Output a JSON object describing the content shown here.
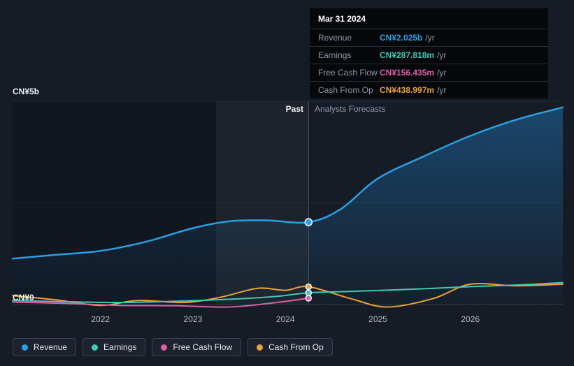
{
  "page": {
    "background": "#151c26"
  },
  "tooltip": {
    "title": "Mar 31 2024",
    "rows": [
      {
        "label": "Revenue",
        "value": "CN¥2.025b",
        "suffix": "/yr",
        "color": "#2b9fe3"
      },
      {
        "label": "Earnings",
        "value": "CN¥287.818m",
        "suffix": "/yr",
        "color": "#41c9b4"
      },
      {
        "label": "Free Cash Flow",
        "value": "CN¥156.435m",
        "suffix": "/yr",
        "color": "#dd5fa4"
      },
      {
        "label": "Cash From Op",
        "value": "CN¥438.997m",
        "suffix": "/yr",
        "color": "#e9a23b"
      }
    ]
  },
  "chart_data": {
    "type": "line",
    "title": "Past and forecast financials (CN¥ billions per year)",
    "y_axis": {
      "top_label": "CN¥5b",
      "bottom_label": "CN¥0",
      "ylim": [
        0,
        5
      ],
      "gridlines": [
        0,
        2.5,
        5
      ]
    },
    "x_axis": {
      "ticks": [
        2022,
        2023,
        2024,
        2025,
        2026
      ],
      "xlim": [
        2021.05,
        2027
      ]
    },
    "divider": {
      "x": 2024.25,
      "date": "Mar 31 2024",
      "past_label": "Past",
      "forecast_label": "Analysts Forecasts"
    },
    "series": [
      {
        "name": "Cash From Op",
        "color": "#e9a23b",
        "area": false,
        "marker_value": 0.439,
        "points": [
          [
            2021.05,
            0.22
          ],
          [
            2021.5,
            0.12
          ],
          [
            2022,
            -0.02
          ],
          [
            2022.4,
            0.1
          ],
          [
            2022.9,
            0.05
          ],
          [
            2023.3,
            0.18
          ],
          [
            2023.7,
            0.4
          ],
          [
            2024,
            0.35
          ],
          [
            2024.25,
            0.439
          ],
          [
            2024.7,
            0.15
          ],
          [
            2025.1,
            -0.06
          ],
          [
            2025.6,
            0.15
          ],
          [
            2026,
            0.5
          ],
          [
            2026.5,
            0.46
          ],
          [
            2027,
            0.5
          ]
        ]
      },
      {
        "name": "Free Cash Flow",
        "color": "#dd5fa4",
        "area": false,
        "marker_value": 0.156,
        "points": [
          [
            2021.05,
            0.06
          ],
          [
            2021.6,
            0.03
          ],
          [
            2022.2,
            -0.02
          ],
          [
            2022.8,
            -0.03
          ],
          [
            2023.4,
            -0.06
          ],
          [
            2023.9,
            0.05
          ],
          [
            2024.25,
            0.156
          ]
        ]
      },
      {
        "name": "Earnings",
        "color": "#41c9b4",
        "area": false,
        "marker_value": 0.288,
        "points": [
          [
            2021.05,
            0.1
          ],
          [
            2021.6,
            0.07
          ],
          [
            2022.2,
            0.05
          ],
          [
            2022.8,
            0.08
          ],
          [
            2023.4,
            0.13
          ],
          [
            2023.9,
            0.2
          ],
          [
            2024.25,
            0.288
          ],
          [
            2024.8,
            0.33
          ],
          [
            2025.4,
            0.38
          ],
          [
            2026,
            0.44
          ],
          [
            2026.5,
            0.48
          ],
          [
            2027,
            0.54
          ]
        ]
      },
      {
        "name": "Revenue",
        "color": "#2b9fe3",
        "area": true,
        "marker_value": 2.025,
        "points": [
          [
            2021.05,
            1.13
          ],
          [
            2021.5,
            1.22
          ],
          [
            2022,
            1.32
          ],
          [
            2022.5,
            1.55
          ],
          [
            2023,
            1.88
          ],
          [
            2023.4,
            2.05
          ],
          [
            2023.8,
            2.07
          ],
          [
            2024.25,
            2.025
          ],
          [
            2024.6,
            2.35
          ],
          [
            2025,
            3.1
          ],
          [
            2025.5,
            3.65
          ],
          [
            2026,
            4.15
          ],
          [
            2026.5,
            4.55
          ],
          [
            2027,
            4.85
          ]
        ]
      }
    ]
  },
  "legend": {
    "items": [
      {
        "label": "Revenue",
        "color": "#2b9fe3"
      },
      {
        "label": "Earnings",
        "color": "#41c9b4"
      },
      {
        "label": "Free Cash Flow",
        "color": "#dd5fa4"
      },
      {
        "label": "Cash From Op",
        "color": "#e9a23b"
      }
    ]
  }
}
